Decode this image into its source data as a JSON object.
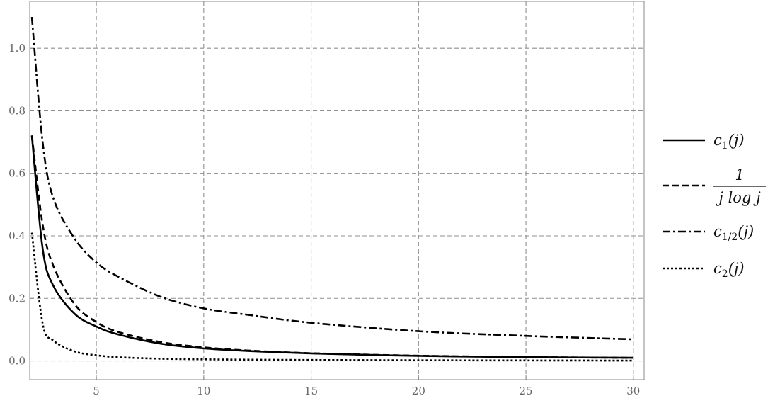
{
  "chart_data": {
    "type": "line",
    "title": "",
    "xlabel": "",
    "ylabel": "",
    "xlim": [
      1.9,
      30.5
    ],
    "ylim": [
      -0.06,
      1.15
    ],
    "x_ticks": [
      5,
      10,
      15,
      20,
      25,
      30
    ],
    "y_ticks": [
      0.0,
      0.2,
      0.4,
      0.6,
      0.8,
      1.0
    ],
    "y_tick_labels": [
      "0.0",
      "0.2",
      "0.4",
      "0.6",
      "0.8",
      "1.0"
    ],
    "grid": true,
    "legend_position": "right",
    "series": [
      {
        "name": "c1(j)",
        "legend": {
          "base": "c",
          "sub": "1",
          "arg": "(j)"
        },
        "style": "solid",
        "x": [
          2,
          2.5,
          3,
          4,
          5,
          6,
          8,
          10,
          12,
          15,
          20,
          25,
          30
        ],
        "y": [
          0.72,
          0.36,
          0.24,
          0.15,
          0.11,
          0.085,
          0.055,
          0.04,
          0.032,
          0.024,
          0.016,
          0.012,
          0.01
        ]
      },
      {
        "name": "1 / (j log j)",
        "legend": {
          "numerator": "1",
          "denominator": "j log j"
        },
        "style": "dashed",
        "x": [
          2,
          2.5,
          3,
          4,
          5,
          6,
          8,
          10,
          12,
          15,
          20,
          25,
          30
        ],
        "y": [
          0.7213,
          0.4366,
          0.3034,
          0.1803,
          0.1243,
          0.093,
          0.0601,
          0.0434,
          0.0335,
          0.0246,
          0.0167,
          0.0124,
          0.0098
        ]
      },
      {
        "name": "c1/2(j)",
        "legend": {
          "base": "c",
          "sub": "1/2",
          "arg": "(j)"
        },
        "style": "dashdot",
        "x": [
          2,
          2.5,
          3,
          4,
          5,
          6,
          8,
          10,
          12,
          15,
          20,
          25,
          30
        ],
        "y": [
          1.1,
          0.7,
          0.52,
          0.39,
          0.315,
          0.27,
          0.205,
          0.168,
          0.148,
          0.122,
          0.095,
          0.08,
          0.069
        ]
      },
      {
        "name": "c2(j)",
        "legend": {
          "base": "c",
          "sub": "2",
          "arg": "(j)"
        },
        "style": "dotted",
        "x": [
          2,
          2.5,
          3,
          4,
          5,
          6,
          8,
          10,
          12,
          15,
          20,
          25,
          30
        ],
        "y": [
          0.41,
          0.12,
          0.065,
          0.03,
          0.018,
          0.012,
          0.007,
          0.005,
          0.004,
          0.003,
          0.002,
          0.0015,
          0.001
        ]
      }
    ]
  }
}
